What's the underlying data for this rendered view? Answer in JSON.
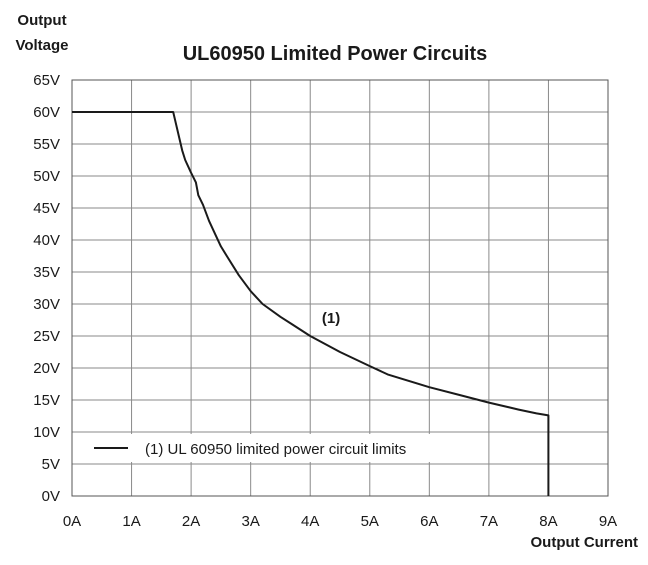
{
  "chart_data": {
    "type": "line",
    "title": "UL60950 Limited Power Circuits",
    "ylabel": [
      "Output",
      "Voltage"
    ],
    "xlabel": "Output Current",
    "x_ticks": [
      "0A",
      "1A",
      "2A",
      "3A",
      "4A",
      "5A",
      "6A",
      "7A",
      "8A",
      "9A"
    ],
    "y_ticks": [
      "0V",
      "5V",
      "10V",
      "15V",
      "20V",
      "25V",
      "30V",
      "35V",
      "40V",
      "45V",
      "50V",
      "55V",
      "60V",
      "65V"
    ],
    "xlim": [
      0,
      9
    ],
    "ylim": [
      0,
      65
    ],
    "grid": true,
    "legend_position": "bottom-left",
    "series": [
      {
        "name": "(1) UL 60950 limited power circuit limits",
        "color": "#1a1a1a",
        "x": [
          0,
          1.7,
          1.75,
          1.8,
          1.85,
          1.9,
          2.0,
          2.08,
          2.12,
          2.2,
          2.3,
          2.4,
          2.5,
          2.6,
          2.8,
          3.0,
          3.2,
          3.5,
          3.7,
          4.0,
          4.5,
          5.0,
          5.3,
          6.0,
          6.5,
          7.0,
          7.5,
          7.8,
          8.0,
          8.0
        ],
        "y": [
          60,
          60,
          58,
          56,
          54,
          52.5,
          50.5,
          49,
          47,
          45.5,
          43,
          41,
          39,
          37.5,
          34.5,
          32,
          30,
          28,
          26.8,
          25,
          22.5,
          20.3,
          19,
          17,
          15.8,
          14.6,
          13.5,
          12.9,
          12.6,
          0
        ]
      }
    ],
    "annotations": [
      {
        "text": "(1)",
        "x": 4.35,
        "y": 27
      }
    ]
  }
}
